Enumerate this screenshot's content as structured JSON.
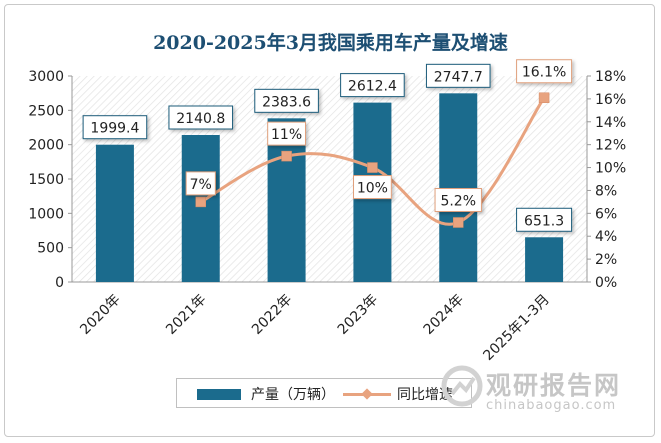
{
  "chart_data": {
    "type": "bar+line",
    "title": "2020-2025年3月我国乘用车产量及增速",
    "categories": [
      "2020年",
      "2021年",
      "2022年",
      "2023年",
      "2024年",
      "2025年1-3月"
    ],
    "series": [
      {
        "name": "产量（万辆）",
        "type": "bar",
        "axis": "left",
        "values": [
          1999.4,
          2140.8,
          2383.6,
          2612.4,
          2747.7,
          651.3
        ],
        "labels": [
          "1999.4",
          "2140.8",
          "2383.6",
          "2612.4",
          "2747.7",
          "651.3"
        ],
        "color": "#1b6b8d"
      },
      {
        "name": "同比增速",
        "type": "line",
        "axis": "right",
        "values": [
          null,
          7,
          11,
          10,
          5.2,
          16.1
        ],
        "labels": [
          "",
          "7%",
          "11%",
          "10%",
          "5.2%",
          "16.1%"
        ],
        "color": "#e8a37f"
      }
    ],
    "y_left": {
      "min": 0,
      "max": 3000,
      "ticks": [
        "0",
        "500",
        "1000",
        "1500",
        "2000",
        "2500",
        "3000"
      ]
    },
    "y_right": {
      "min": 0,
      "max": 18,
      "ticks": [
        "0%",
        "2%",
        "4%",
        "6%",
        "8%",
        "10%",
        "12%",
        "14%",
        "16%",
        "18%"
      ]
    },
    "legend_position": "bottom",
    "grid": false
  },
  "watermark": {
    "name": "观研报告网",
    "url": "chinabaogao.com"
  }
}
